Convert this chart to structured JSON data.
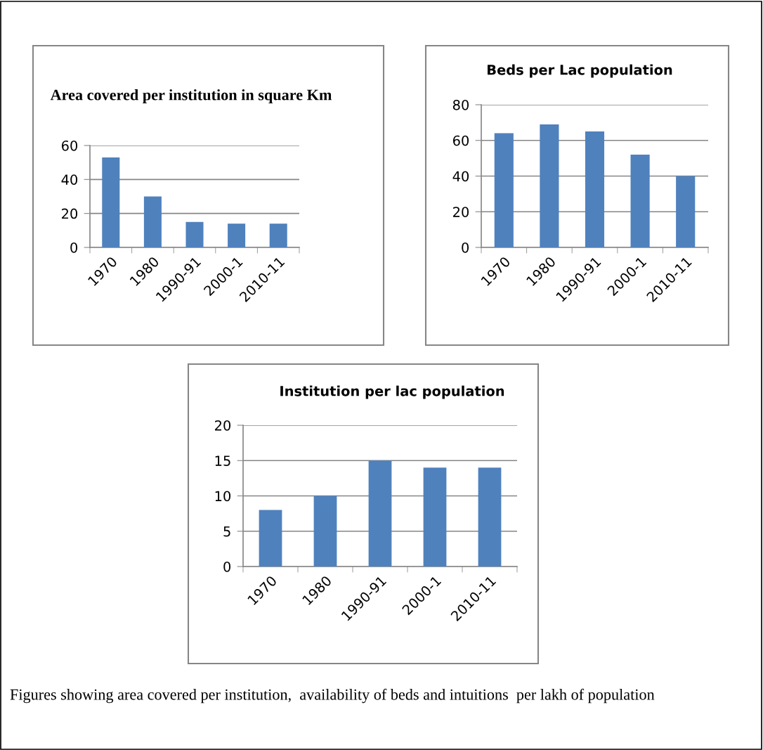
{
  "chart_data": [
    {
      "type": "bar",
      "title": "Area covered per institution in square Km",
      "categories": [
        "1970",
        "1980",
        "1990-91",
        "2000-1",
        "2010-11"
      ],
      "values": [
        53,
        30,
        15,
        14,
        14
      ],
      "color": "#4f81bd",
      "ylim": [
        0,
        60
      ],
      "yticks": [
        0,
        20,
        40,
        60
      ],
      "grid": "y"
    },
    {
      "type": "bar",
      "title": "Beds per Lac population",
      "categories": [
        "1970",
        "1980",
        "1990-91",
        "2000-1",
        "2010-11"
      ],
      "values": [
        64,
        69,
        65,
        52,
        40
      ],
      "color": "#4f81bd",
      "ylim": [
        0,
        80
      ],
      "yticks": [
        0,
        20,
        40,
        60,
        80
      ],
      "grid": "y"
    },
    {
      "type": "bar",
      "title": "Institution per lac population",
      "categories": [
        "1970",
        "1980",
        "1990-91",
        "2000-1",
        "2010-11"
      ],
      "values": [
        8,
        10,
        15,
        14,
        14
      ],
      "color": "#4f81bd",
      "ylim": [
        0,
        20
      ],
      "yticks": [
        0,
        5,
        10,
        15,
        20
      ],
      "grid": "y",
      "annotations": [
        "Figures showing area covered per institution,  availability of beds and intuitions  per lakh of population"
      ]
    }
  ]
}
